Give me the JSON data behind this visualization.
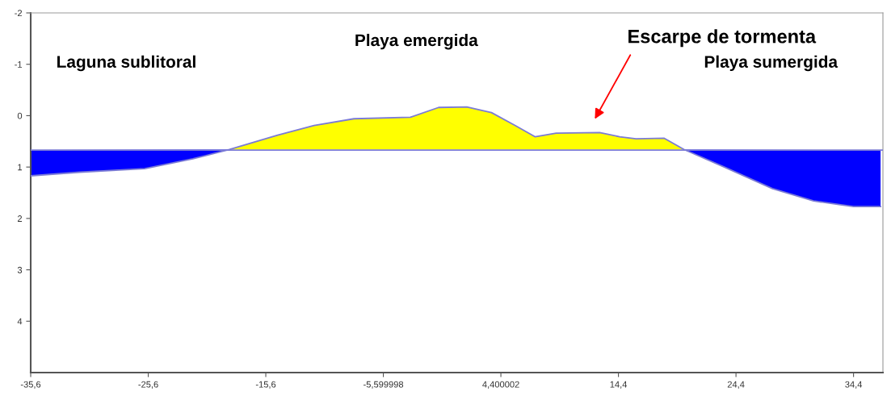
{
  "chart_data": {
    "type": "area",
    "x": [
      -35.6,
      -31.4,
      -25.9,
      -21.8,
      -18.7,
      -14.6,
      -11.5,
      -8.1,
      -3.3,
      -0.9,
      1.5,
      3.6,
      5.6,
      7.3,
      9.1,
      12.8,
      14.5,
      15.9,
      18.3,
      20.0,
      23.4,
      27.5,
      31.0,
      34.4,
      36.7
    ],
    "series": [
      {
        "color": "#0000ff",
        "x": [
          -35.6,
          -35.6,
          -31.4,
          -25.9,
          -21.8,
          -18.7
        ],
        "values": [
          0.67,
          1.17,
          1.1,
          1.03,
          0.84,
          0.66
        ]
      },
      {
        "color": "#0000ff",
        "x": [
          20.0,
          23.4,
          27.5,
          31.0,
          34.4,
          36.7,
          36.7
        ],
        "values": [
          0.66,
          1.0,
          1.42,
          1.66,
          1.77,
          1.77,
          0.67
        ]
      },
      {
        "color": "#ffff00",
        "values": [
          null,
          null,
          null,
          null,
          0.66,
          0.38,
          0.19,
          0.06,
          0.03,
          -0.16,
          -0.17,
          -0.06,
          0.19,
          0.41,
          0.34,
          0.33,
          0.41,
          0.45,
          0.44,
          0.66,
          null,
          null,
          null,
          null,
          null
        ]
      },
      {
        "type": "line",
        "color": "#7b7bd6",
        "values": [
          1.17,
          1.1,
          1.03,
          0.84,
          0.66,
          0.38,
          0.19,
          0.06,
          0.03,
          -0.16,
          -0.17,
          -0.06,
          0.19,
          0.41,
          0.34,
          0.33,
          0.41,
          0.45,
          0.44,
          0.66,
          1.0,
          1.42,
          1.66,
          1.77,
          1.77
        ]
      }
    ],
    "ref_lines": [
      {
        "axis": "y",
        "value": 0.67,
        "label": null,
        "color": "#7b7bd6"
      }
    ],
    "xlim": [
      -35.6,
      36.9
    ],
    "ylim": [
      5,
      -2
    ],
    "xticks": [
      {
        "value": -35.6,
        "label": "-35,6"
      },
      {
        "value": -25.6,
        "label": "-25,6"
      },
      {
        "value": -15.6,
        "label": "-15,6"
      },
      {
        "value": -5.599998,
        "label": "-5,599998"
      },
      {
        "value": 4.400002,
        "label": "4,400002"
      },
      {
        "value": 14.4,
        "label": "14,4"
      },
      {
        "value": 24.4,
        "label": "24,4"
      },
      {
        "value": 34.4,
        "label": "34,4"
      }
    ],
    "yticks": [
      -2,
      -1,
      0,
      1,
      2,
      3,
      4
    ],
    "grid": false,
    "annotations": [
      "Laguna sublitoral",
      "Playa emergida",
      "Playa sumergida",
      "Escarpe de tormenta"
    ]
  }
}
